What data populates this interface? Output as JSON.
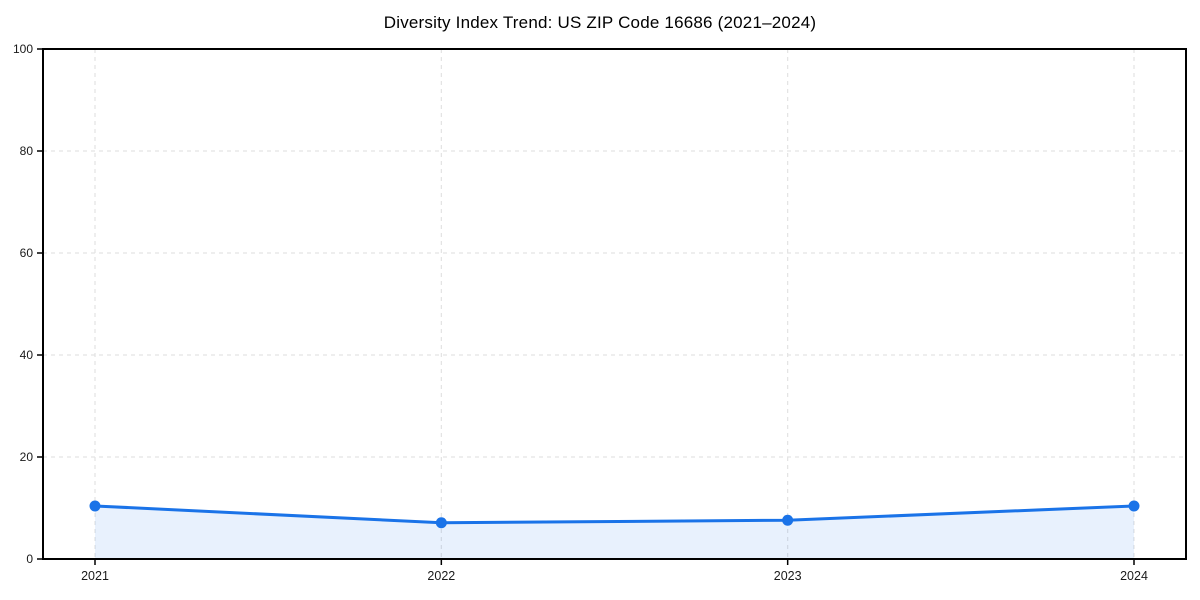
{
  "figure": {
    "background_color": "#ffffff"
  },
  "chart_data": {
    "type": "area",
    "title": "Diversity Index Trend: US ZIP Code 16686 (2021–2024)",
    "categories": [
      "2021",
      "2022",
      "2023",
      "2024"
    ],
    "series": [
      {
        "name": "Diversity Index",
        "values": [
          10.4,
          7.1,
          7.6,
          10.4
        ]
      }
    ],
    "xlabel": "",
    "ylabel": "",
    "ylim": [
      0,
      100
    ],
    "yticks": [
      0,
      20,
      40,
      60,
      80,
      100
    ],
    "grid": true,
    "grid_style": "dashed",
    "legend": false,
    "marker": "circle",
    "colors": {
      "line": "#1a73e8",
      "marker": "#1a73e8",
      "fill": "rgba(26,115,232,0.10)",
      "grid": "#e3e3e3",
      "axis": "#000000",
      "tick_label": "#1a1a1a",
      "title": "#000000",
      "background": "#ffffff"
    }
  }
}
